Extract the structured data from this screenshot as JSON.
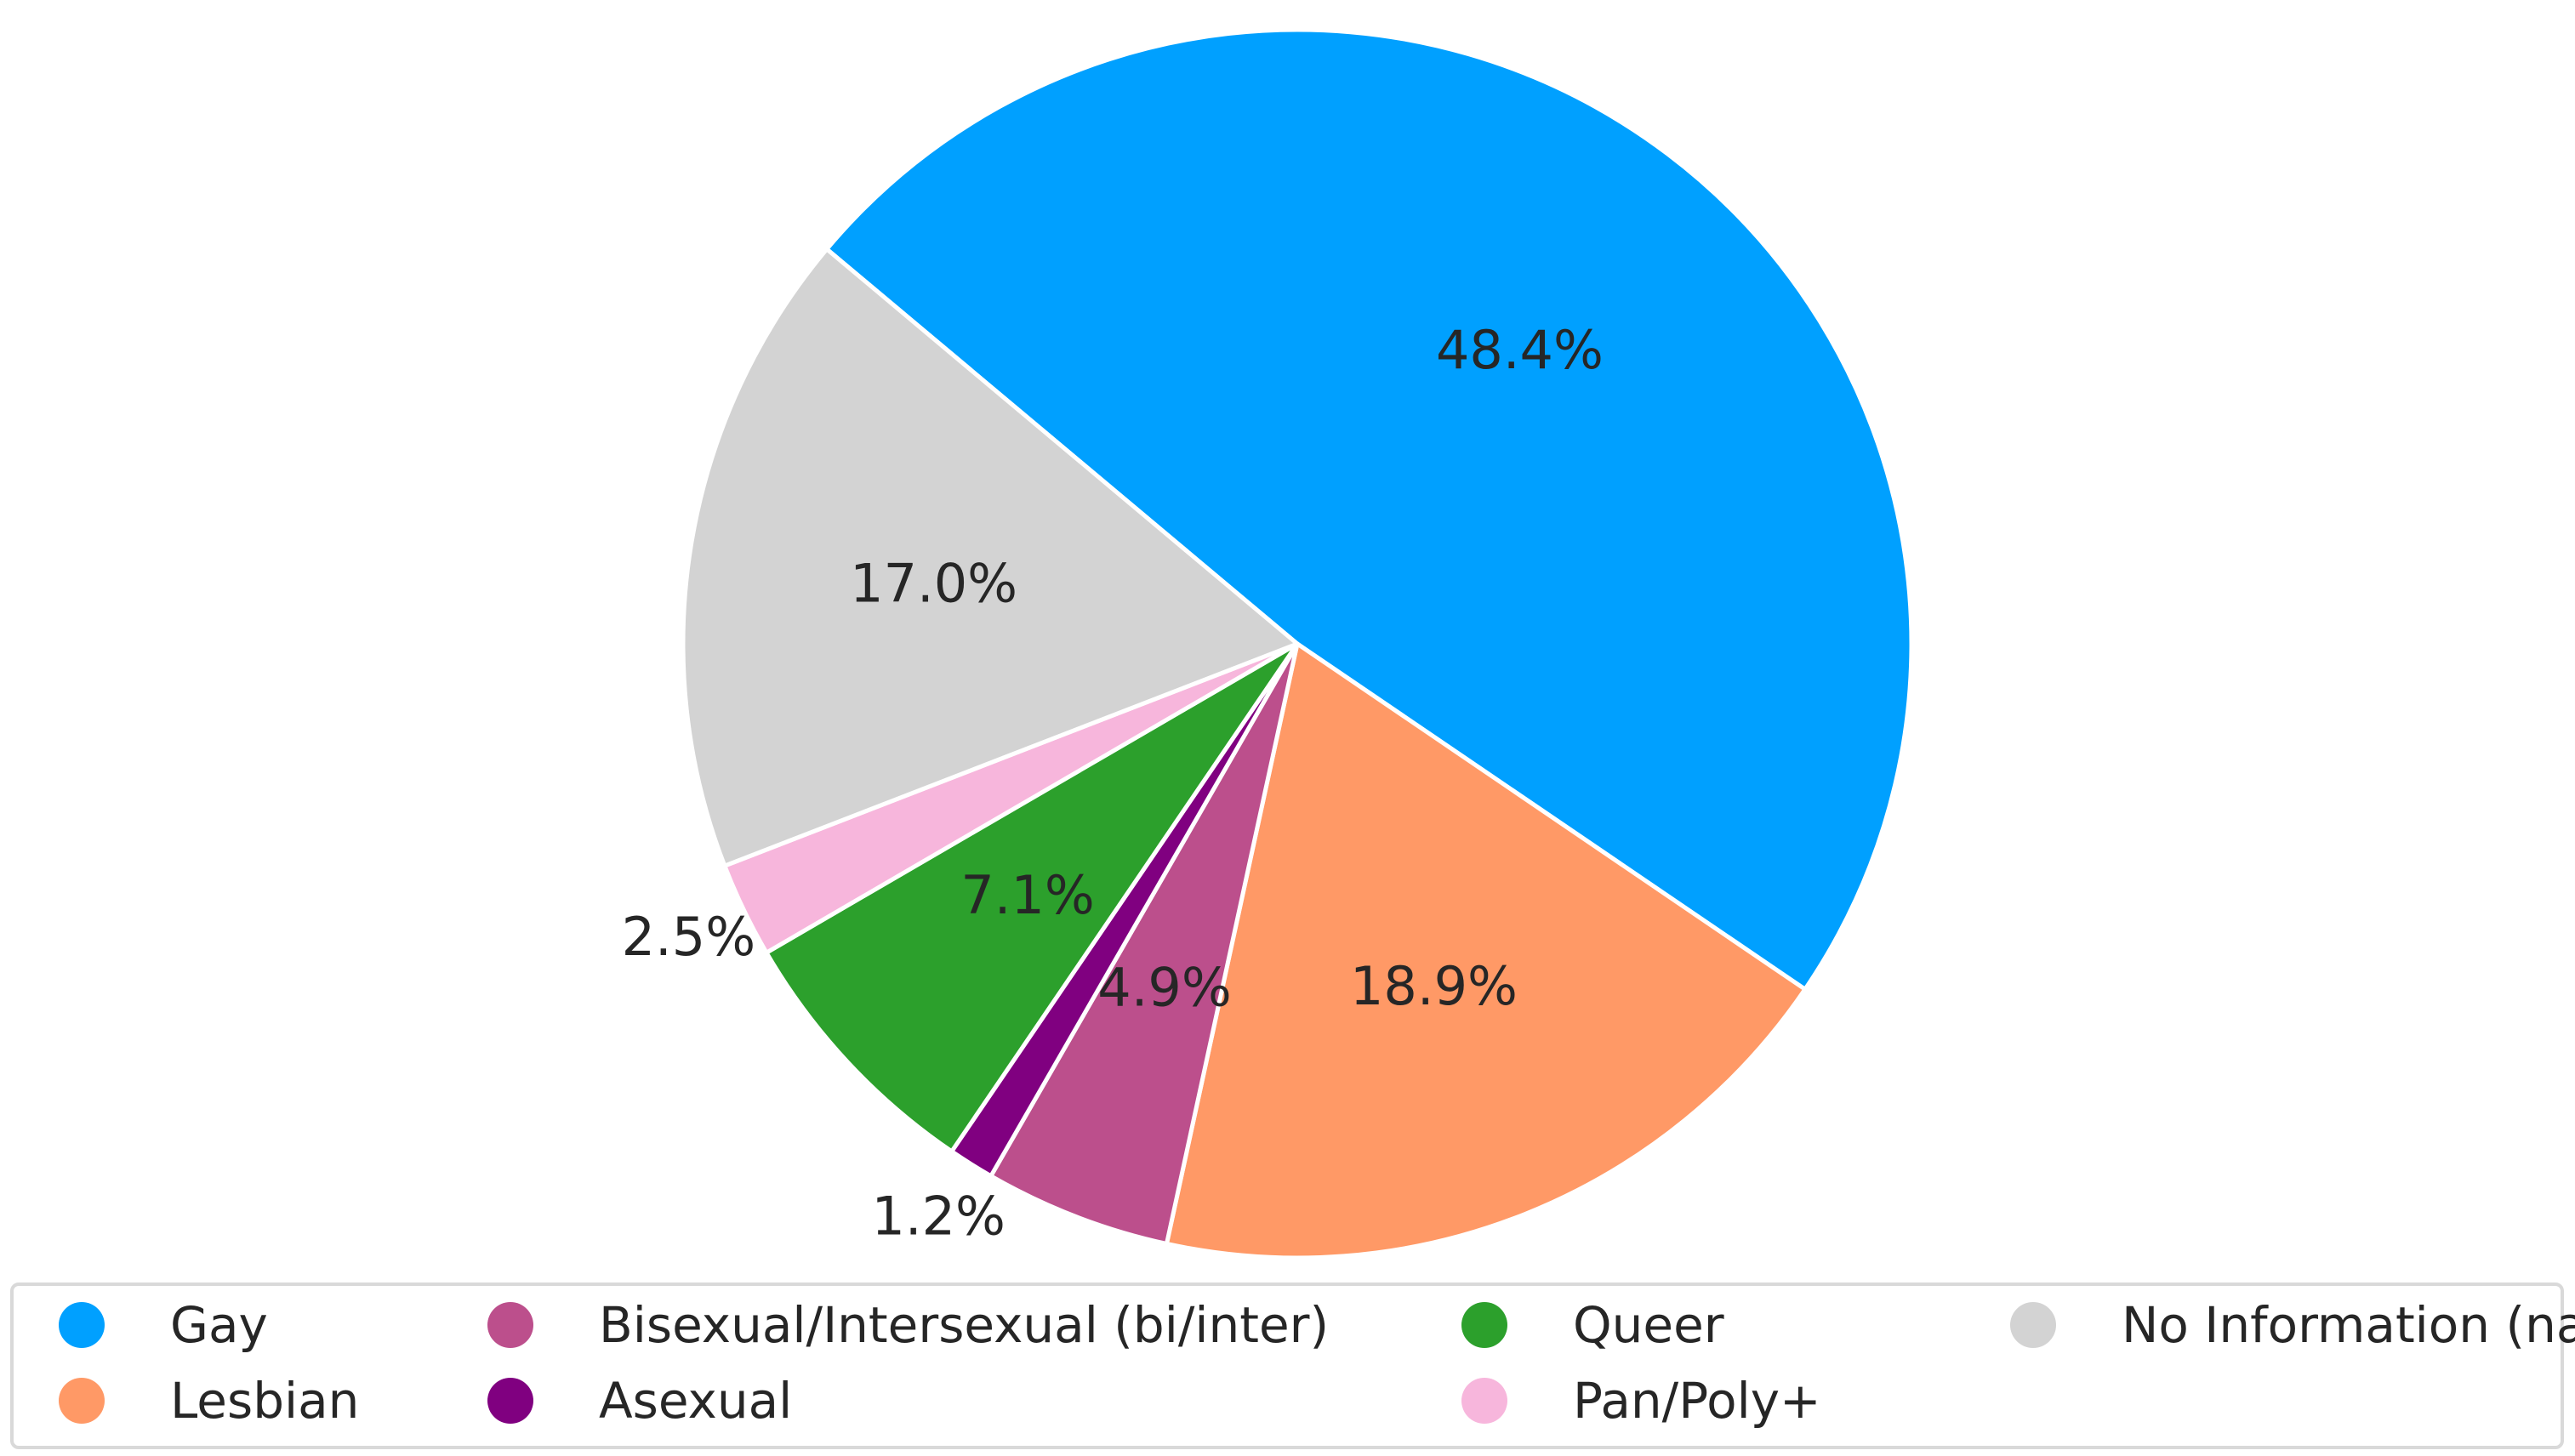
{
  "chart_data": {
    "type": "pie",
    "title": "",
    "start_angle_deg": 140,
    "direction": "clockwise",
    "slices": [
      {
        "label": "Gay",
        "value": 48.4,
        "pct_label": "48.4%",
        "color": "#00A0FF"
      },
      {
        "label": "Lesbian",
        "value": 18.9,
        "pct_label": "18.9%",
        "color": "#FF9966"
      },
      {
        "label": "Bisexual/Intersexual (bi/inter)",
        "value": 4.9,
        "pct_label": "4.9%",
        "color": "#BC4F8C"
      },
      {
        "label": "Asexual",
        "value": 1.2,
        "pct_label": "1.2%",
        "color": "#800080"
      },
      {
        "label": "Queer",
        "value": 7.1,
        "pct_label": "7.1%",
        "color": "#2CA02C"
      },
      {
        "label": "Pan/Poly+",
        "value": 2.5,
        "pct_label": "2.5%",
        "color": "#F7B6DC"
      },
      {
        "label": "No Information (na)",
        "value": 17.0,
        "pct_label": "17.0%",
        "color": "#D3D3D3"
      }
    ],
    "legend": {
      "placement": "bottom",
      "columns": 4,
      "entries": [
        "Gay",
        "Lesbian",
        "Bisexual/Intersexual (bi/inter)",
        "Asexual",
        "Queer",
        "Pan/Poly+",
        "No Information (na)"
      ]
    }
  }
}
